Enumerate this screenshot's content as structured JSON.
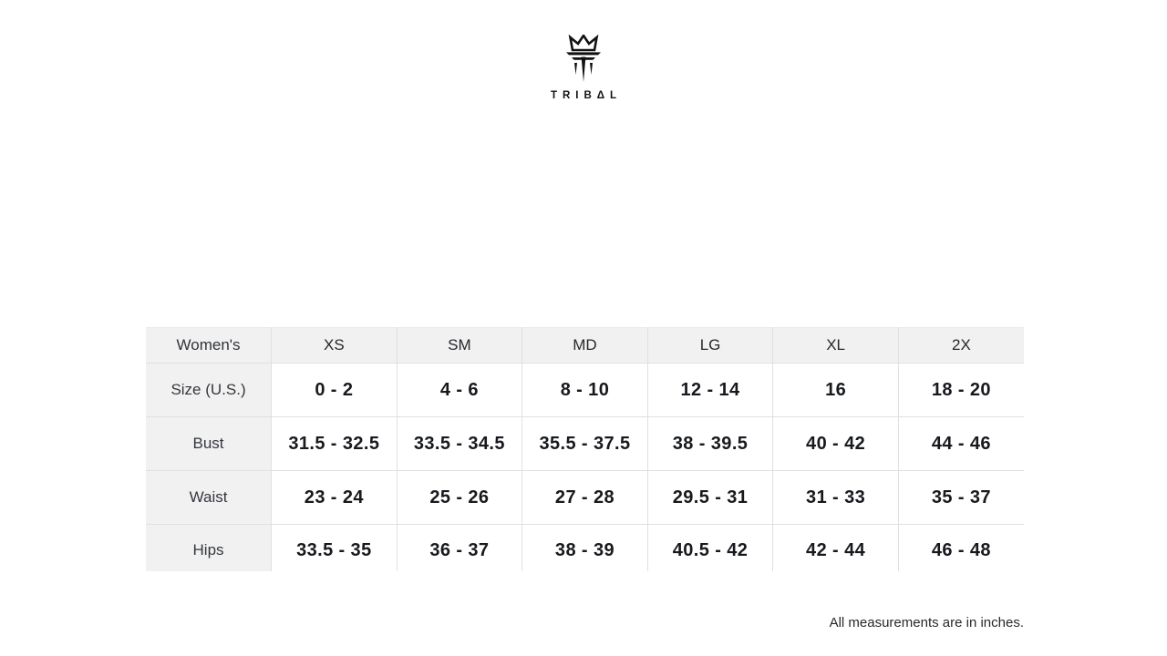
{
  "brand": {
    "wordmark": "TRIBΔL",
    "logo_icon": "crown-t-logo-icon"
  },
  "size_chart": {
    "corner_label": "Women's",
    "columns": [
      "XS",
      "SM",
      "MD",
      "LG",
      "XL",
      "2X"
    ],
    "rows": [
      {
        "label": "Size (U.S.)",
        "values": [
          "0 - 2",
          "4 - 6",
          "8 - 10",
          "12 - 14",
          "16",
          "18 - 20"
        ]
      },
      {
        "label": "Bust",
        "values": [
          "31.5 - 32.5",
          "33.5 - 34.5",
          "35.5 - 37.5",
          "38 - 39.5",
          "40 - 42",
          "44 - 46"
        ]
      },
      {
        "label": "Waist",
        "values": [
          "23 - 24",
          "25 - 26",
          "27 - 28",
          "29.5 - 31",
          "31 - 33",
          "35 - 37"
        ]
      },
      {
        "label": "Hips",
        "values": [
          "33.5 - 35",
          "36 - 37",
          "38 - 39",
          "40.5 - 42",
          "42 - 44",
          "46 - 48"
        ]
      }
    ]
  },
  "footer": {
    "note": "All measurements are in inches."
  },
  "colors": {
    "page_bg": "#ffffff",
    "header_cell_bg": "#f1f1f1",
    "grid_border": "#e0e0e0",
    "label_text": "#34373c",
    "value_text": "#17191d",
    "logo": "#111111"
  }
}
